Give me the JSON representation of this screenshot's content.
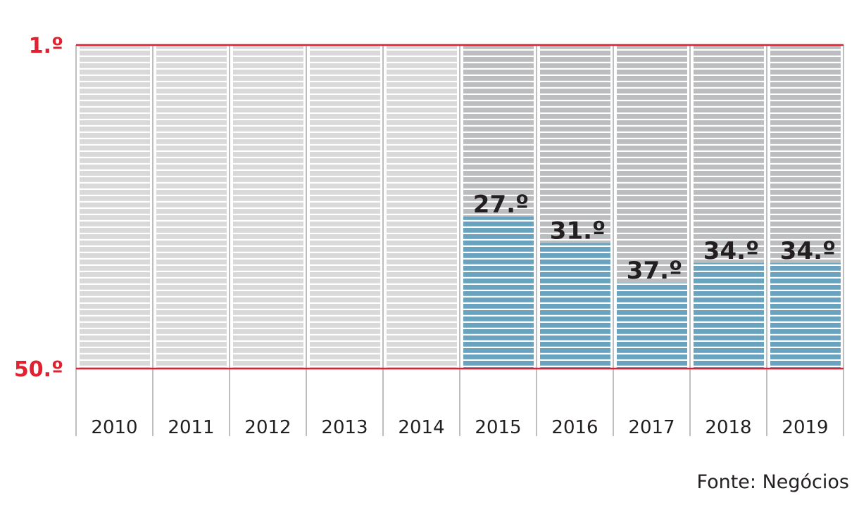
{
  "chart_data": {
    "type": "bar",
    "categories": [
      "2010",
      "2011",
      "2012",
      "2013",
      "2014",
      "2015",
      "2016",
      "2017",
      "2018",
      "2019"
    ],
    "values": [
      null,
      null,
      null,
      null,
      null,
      27.0,
      31.0,
      37.0,
      34.0,
      34.0
    ],
    "value_labels": [
      "",
      "",
      "",
      "",
      "",
      "27.º",
      "31.º",
      "37.º",
      "34.º",
      "34.º"
    ],
    "y_axis": {
      "top_label": "1.º",
      "bottom_label": "50.º",
      "range": [
        1,
        50
      ],
      "inverted": true
    },
    "xlabel": "",
    "ylabel": "",
    "title": ""
  },
  "source": "Fonte: Negócios",
  "colors": {
    "axis_line": "#e3202f",
    "axis_label": "#e3202f",
    "bar_fill": "#6aa3bf",
    "column_bg_light": "#d9d9da",
    "column_bg_dark": "#bcbdbf",
    "stripe": "#ffffff",
    "label_text": "#231f20"
  }
}
